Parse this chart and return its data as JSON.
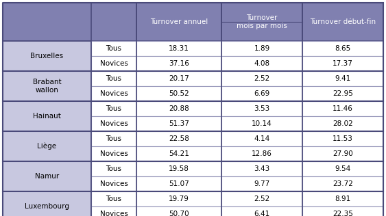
{
  "header_bg": "#8080B0",
  "header_text_color": "#FFFFFF",
  "row_bg_province": "#C8C8E0",
  "row_bg_white": "#FFFFFF",
  "border_thick": "#4A4A7A",
  "border_thin": "#9999BB",
  "col_headers_line1": [
    "Turnover annuel",
    "Turnover",
    "Turnover début-fin"
  ],
  "col_headers_line2": [
    "",
    "mois par mois",
    ""
  ],
  "rows": [
    [
      "Bruxelles",
      "Tous",
      "18.31",
      "1.89",
      "8.65"
    ],
    [
      "",
      "Novices",
      "37.16",
      "4.08",
      "17.37"
    ],
    [
      "Brabant\nwallon",
      "Tous",
      "20.17",
      "2.52",
      "9.41"
    ],
    [
      "",
      "Novices",
      "50.52",
      "6.69",
      "22.95"
    ],
    [
      "Hainaut",
      "Tous",
      "20.88",
      "3.53",
      "11.46"
    ],
    [
      "",
      "Novices",
      "51.37",
      "10.14",
      "28.02"
    ],
    [
      "Liège",
      "Tous",
      "22.58",
      "4.14",
      "11.53"
    ],
    [
      "",
      "Novices",
      "54.21",
      "12.86",
      "27.90"
    ],
    [
      "Namur",
      "Tous",
      "19.58",
      "3.43",
      "9.54"
    ],
    [
      "",
      "Novices",
      "51.07",
      "9.77",
      "23.72"
    ],
    [
      "Luxembourg",
      "Tous",
      "19.79",
      "2.52",
      "8.91"
    ],
    [
      "",
      "Novices",
      "50.70",
      "6.41",
      "22.35"
    ]
  ],
  "province_row_starts": [
    0,
    2,
    4,
    6,
    8,
    10
  ],
  "province_names": [
    "Bruxelles",
    "Brabant\nwallon",
    "Hainaut",
    "Liège",
    "Namur",
    "Luxembourg"
  ]
}
